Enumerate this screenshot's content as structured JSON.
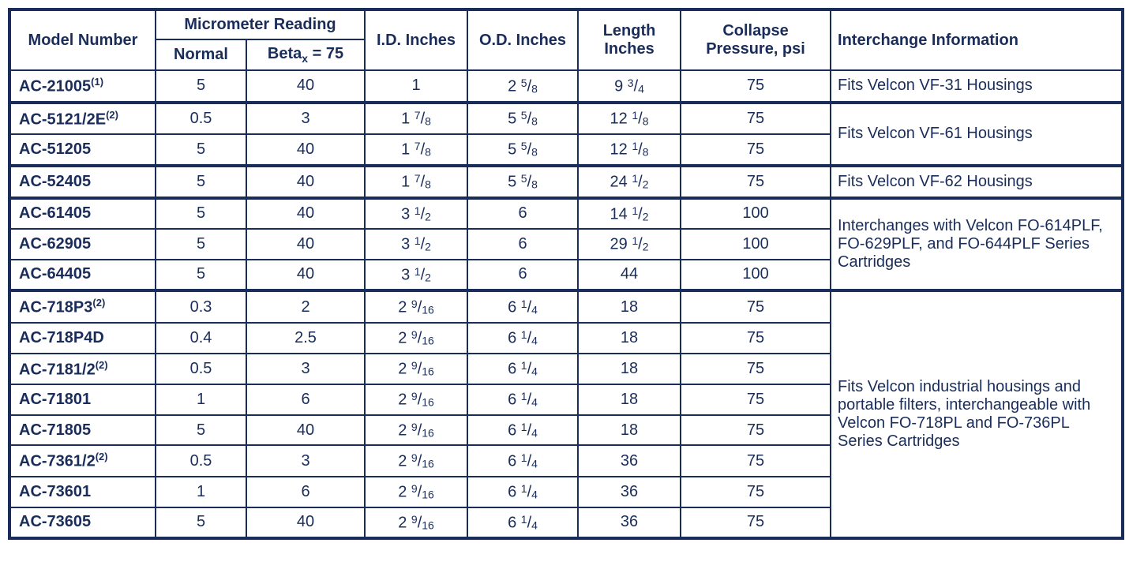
{
  "headers": {
    "model": "Model Number",
    "micrometer": "Micrometer Reading",
    "normal": "Normal",
    "beta_prefix": "Beta",
    "beta_sub": "x",
    "beta_suffix": " = 75",
    "id": "I.D. Inches",
    "od": "O.D. Inches",
    "length": "Length Inches",
    "collapse": "Collapse Pressure, psi",
    "interchange": "Interchange Information"
  },
  "rows": [
    {
      "model": "AC-21005",
      "sup": "(1)",
      "normal": "5",
      "beta": "40",
      "id_w": "1",
      "id_n": "",
      "id_d": "",
      "od_w": "2",
      "od_n": "5",
      "od_d": "8",
      "len_w": "9",
      "len_n": "3",
      "len_d": "4",
      "psi": "75"
    },
    {
      "model": "AC-5121/2E",
      "sup": "(2)",
      "normal": "0.5",
      "beta": "3",
      "id_w": "1",
      "id_n": "7",
      "id_d": "8",
      "od_w": "5",
      "od_n": "5",
      "od_d": "8",
      "len_w": "12",
      "len_n": "1",
      "len_d": "8",
      "psi": "75"
    },
    {
      "model": "AC-51205",
      "sup": "",
      "normal": "5",
      "beta": "40",
      "id_w": "1",
      "id_n": "7",
      "id_d": "8",
      "od_w": "5",
      "od_n": "5",
      "od_d": "8",
      "len_w": "12",
      "len_n": "1",
      "len_d": "8",
      "psi": "75"
    },
    {
      "model": "AC-52405",
      "sup": "",
      "normal": "5",
      "beta": "40",
      "id_w": "1",
      "id_n": "7",
      "id_d": "8",
      "od_w": "5",
      "od_n": "5",
      "od_d": "8",
      "len_w": "24",
      "len_n": "1",
      "len_d": "2",
      "psi": "75"
    },
    {
      "model": "AC-61405",
      "sup": "",
      "normal": "5",
      "beta": "40",
      "id_w": "3",
      "id_n": "1",
      "id_d": "2",
      "od_w": "6",
      "od_n": "",
      "od_d": "",
      "len_w": "14",
      "len_n": "1",
      "len_d": "2",
      "psi": "100"
    },
    {
      "model": "AC-62905",
      "sup": "",
      "normal": "5",
      "beta": "40",
      "id_w": "3",
      "id_n": "1",
      "id_d": "2",
      "od_w": "6",
      "od_n": "",
      "od_d": "",
      "len_w": "29",
      "len_n": "1",
      "len_d": "2",
      "psi": "100"
    },
    {
      "model": "AC-64405",
      "sup": "",
      "normal": "5",
      "beta": "40",
      "id_w": "3",
      "id_n": "1",
      "id_d": "2",
      "od_w": "6",
      "od_n": "",
      "od_d": "",
      "len_w": "44",
      "len_n": "",
      "len_d": "",
      "psi": "100"
    },
    {
      "model": "AC-718P3",
      "sup": "(2)",
      "normal": "0.3",
      "beta": "2",
      "id_w": "2",
      "id_n": "9",
      "id_d": "16",
      "od_w": "6",
      "od_n": "1",
      "od_d": "4",
      "len_w": "18",
      "len_n": "",
      "len_d": "",
      "psi": "75"
    },
    {
      "model": "AC-718P4D",
      "sup": "",
      "normal": "0.4",
      "beta": "2.5",
      "id_w": "2",
      "id_n": "9",
      "id_d": "16",
      "od_w": "6",
      "od_n": "1",
      "od_d": "4",
      "len_w": "18",
      "len_n": "",
      "len_d": "",
      "psi": "75"
    },
    {
      "model": "AC-7181/2",
      "sup": "(2)",
      "normal": "0.5",
      "beta": "3",
      "id_w": "2",
      "id_n": "9",
      "id_d": "16",
      "od_w": "6",
      "od_n": "1",
      "od_d": "4",
      "len_w": "18",
      "len_n": "",
      "len_d": "",
      "psi": "75"
    },
    {
      "model": "AC-71801",
      "sup": "",
      "normal": "1",
      "beta": "6",
      "id_w": "2",
      "id_n": "9",
      "id_d": "16",
      "od_w": "6",
      "od_n": "1",
      "od_d": "4",
      "len_w": "18",
      "len_n": "",
      "len_d": "",
      "psi": "75"
    },
    {
      "model": "AC-71805",
      "sup": "",
      "normal": "5",
      "beta": "40",
      "id_w": "2",
      "id_n": "9",
      "id_d": "16",
      "od_w": "6",
      "od_n": "1",
      "od_d": "4",
      "len_w": "18",
      "len_n": "",
      "len_d": "",
      "psi": "75"
    },
    {
      "model": "AC-7361/2",
      "sup": "(2)",
      "normal": "0.5",
      "beta": "3",
      "id_w": "2",
      "id_n": "9",
      "id_d": "16",
      "od_w": "6",
      "od_n": "1",
      "od_d": "4",
      "len_w": "36",
      "len_n": "",
      "len_d": "",
      "psi": "75"
    },
    {
      "model": "AC-73601",
      "sup": "",
      "normal": "1",
      "beta": "6",
      "id_w": "2",
      "id_n": "9",
      "id_d": "16",
      "od_w": "6",
      "od_n": "1",
      "od_d": "4",
      "len_w": "36",
      "len_n": "",
      "len_d": "",
      "psi": "75"
    },
    {
      "model": "AC-73605",
      "sup": "",
      "normal": "5",
      "beta": "40",
      "id_w": "2",
      "id_n": "9",
      "id_d": "16",
      "od_w": "6",
      "od_n": "1",
      "od_d": "4",
      "len_w": "36",
      "len_n": "",
      "len_d": "",
      "psi": "75"
    }
  ],
  "info_groups": [
    {
      "start": 0,
      "span": 1,
      "text": "Fits Velcon VF-31 Housings"
    },
    {
      "start": 1,
      "span": 2,
      "text": "Fits Velcon VF-61 Housings"
    },
    {
      "start": 3,
      "span": 1,
      "text": "Fits Velcon VF-62 Housings"
    },
    {
      "start": 4,
      "span": 3,
      "text": "Interchanges with Velcon FO-614PLF, FO-629PLF, and FO-644PLF Series Cartridges"
    },
    {
      "start": 7,
      "span": 8,
      "text": "Fits Velcon industrial housings and portable filters, interchangeable with Velcon FO-718PL and FO-736PL Series Cartridges"
    }
  ],
  "thick_rows": [
    1,
    3,
    4,
    7
  ],
  "col_widths": {
    "model": 185,
    "normal": 115,
    "beta": 150,
    "id": 130,
    "od": 140,
    "length": 130,
    "collapse": 190,
    "info": 370
  },
  "colors": {
    "text": "#1a2d5a",
    "border": "#1a2d5a",
    "bg": "#ffffff"
  },
  "font_size": 20
}
